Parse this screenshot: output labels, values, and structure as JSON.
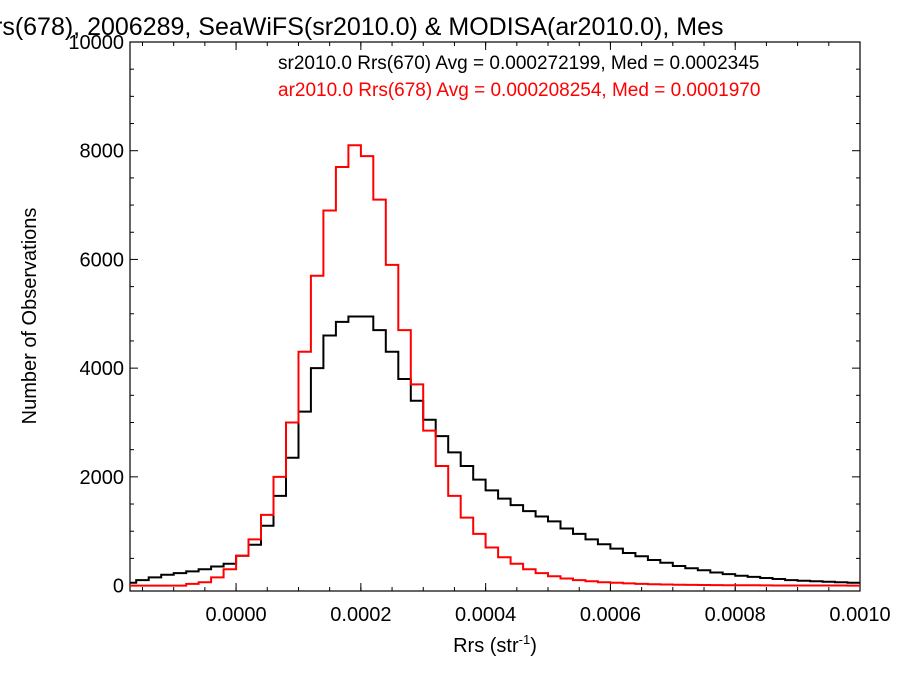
{
  "chart_data": {
    "type": "line",
    "title": "rs(678), 2006289, SeaWiFS(sr2010.0) & MODISA(ar2010.0), Mes",
    "xlabel": "Rrs (str",
    "xlabel_superscript": "-1",
    "xlabel_suffix": ")",
    "ylabel": "Number of Observations",
    "xlim": [
      -0.00017,
      0.001
    ],
    "ylim": [
      -100,
      10000
    ],
    "x_ticks": [
      0.0,
      0.0002,
      0.0004,
      0.0006,
      0.0008,
      0.001
    ],
    "x_tick_labels": [
      "0.0000",
      "0.0002",
      "0.0004",
      "0.0006",
      "0.0008",
      "0.0010"
    ],
    "y_ticks": [
      0,
      2000,
      4000,
      6000,
      8000,
      10000
    ],
    "y_tick_labels": [
      "0",
      "2000",
      "4000",
      "6000",
      "8000",
      "10000"
    ],
    "grid": false,
    "annotations": [
      {
        "text": "sr2010.0 Rrs(670) Avg = 0.000272199, Med = 0.0002345",
        "color": "#000000"
      },
      {
        "text": "ar2010.0 Rrs(678) Avg = 0.000208254, Med = 0.0001970",
        "color": "#ff0000"
      }
    ],
    "series": [
      {
        "color": "#000000",
        "x": [
          -0.00017,
          -0.00015,
          -0.00013,
          -0.00011,
          -9e-05,
          -7e-05,
          -5e-05,
          -3e-05,
          -1e-05,
          1e-05,
          3e-05,
          5e-05,
          7e-05,
          9e-05,
          0.00011,
          0.00013,
          0.00015,
          0.00017,
          0.00019,
          0.00021,
          0.00023,
          0.00025,
          0.00027,
          0.00029,
          0.00031,
          0.00033,
          0.00035,
          0.00037,
          0.00039,
          0.00041,
          0.00043,
          0.00045,
          0.00047,
          0.00049,
          0.00051,
          0.00053,
          0.00055,
          0.00057,
          0.00059,
          0.00061,
          0.00063,
          0.00065,
          0.00067,
          0.00069,
          0.00071,
          0.00073,
          0.00075,
          0.00077,
          0.00079,
          0.00081,
          0.00083,
          0.00085,
          0.00087,
          0.00089,
          0.00091,
          0.00093,
          0.00095,
          0.00097,
          0.00099
        ],
        "values": [
          50,
          100,
          150,
          200,
          230,
          260,
          300,
          350,
          400,
          550,
          750,
          1100,
          1650,
          2350,
          3200,
          4000,
          4600,
          4850,
          4950,
          4950,
          4700,
          4300,
          3800,
          3400,
          3050,
          2750,
          2450,
          2200,
          1950,
          1750,
          1600,
          1480,
          1370,
          1270,
          1180,
          1050,
          950,
          850,
          760,
          680,
          600,
          540,
          470,
          420,
          360,
          320,
          280,
          240,
          210,
          180,
          160,
          140,
          120,
          100,
          90,
          80,
          70,
          60,
          50
        ]
      },
      {
        "color": "#ff0000",
        "x": [
          -0.00017,
          -0.00015,
          -0.00013,
          -0.00011,
          -9e-05,
          -7e-05,
          -5e-05,
          -3e-05,
          -1e-05,
          1e-05,
          3e-05,
          5e-05,
          7e-05,
          9e-05,
          0.00011,
          0.00013,
          0.00015,
          0.00017,
          0.00019,
          0.00021,
          0.00023,
          0.00025,
          0.00027,
          0.00029,
          0.00031,
          0.00033,
          0.00035,
          0.00037,
          0.00039,
          0.00041,
          0.00043,
          0.00045,
          0.00047,
          0.00049,
          0.00051,
          0.00053,
          0.00055,
          0.00057,
          0.00059,
          0.00061,
          0.00063,
          0.00065,
          0.00067,
          0.00069,
          0.00071,
          0.00073,
          0.00075,
          0.00077,
          0.00079,
          0.00081,
          0.00083,
          0.00085,
          0.00087,
          0.00089,
          0.00091,
          0.00093,
          0.00095,
          0.00097,
          0.00099
        ],
        "values": [
          0,
          0,
          0,
          0,
          0,
          30,
          60,
          150,
          300,
          550,
          850,
          1300,
          2000,
          3000,
          4300,
          5700,
          6900,
          7700,
          8100,
          7900,
          7100,
          5900,
          4700,
          3700,
          2850,
          2200,
          1650,
          1250,
          950,
          700,
          520,
          400,
          300,
          230,
          170,
          130,
          100,
          80,
          60,
          50,
          40,
          30,
          25,
          20,
          15,
          12,
          10,
          8,
          6,
          5,
          4,
          3,
          2,
          2,
          1,
          1,
          1,
          1,
          0
        ]
      }
    ]
  }
}
